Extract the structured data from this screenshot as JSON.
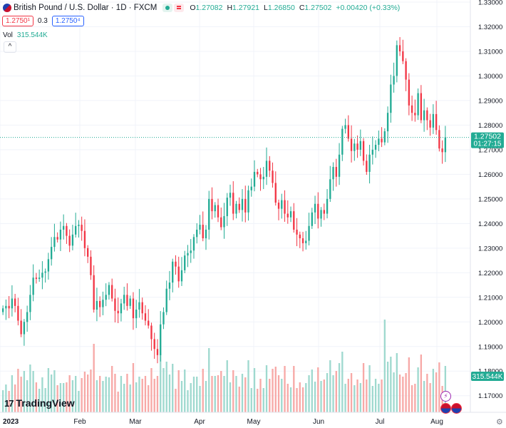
{
  "header": {
    "title": "British Pound / U.S. Dollar · 1D · FXCM",
    "ohlc": [
      {
        "k": "O",
        "v": "1.27082"
      },
      {
        "k": "H",
        "v": "1.27921"
      },
      {
        "k": "L",
        "v": "1.26850"
      },
      {
        "k": "C",
        "v": "1.27502"
      }
    ],
    "change": "+0.00420 (+0.33%)"
  },
  "trade": {
    "sell": "1.2750¹",
    "spread": "0.3",
    "buy": "1.2750⁴"
  },
  "volume": {
    "label": "Vol",
    "value": "315.544K"
  },
  "branding": {
    "logo_text": "TradingView"
  },
  "colors": {
    "up": "#22ab94",
    "down": "#f23645",
    "up_vol": "#9fd9cf",
    "down_vol": "#f7a9a7"
  },
  "chart_data": {
    "type": "candlestick",
    "symbol": "GBPUSD",
    "interval": "1D",
    "y_ticks": [
      "1.33000",
      "1.32000",
      "1.31000",
      "1.30000",
      "1.29000",
      "1.28000",
      "1.27000",
      "1.26000",
      "1.25000",
      "1.24000",
      "1.23000",
      "1.22000",
      "1.21000",
      "1.20000",
      "1.19000",
      "1.18000",
      "1.17000"
    ],
    "x_labels": [
      "2023",
      "Feb",
      "Mar",
      "Apr",
      "May",
      "Jun",
      "Jul",
      "Aug"
    ],
    "last_price": "1.27502",
    "countdown": "01:27:15",
    "volume_badge": "315.544K",
    "closes": [
      1.2055,
      1.2065,
      1.2055,
      1.2095,
      1.2065,
      1.2005,
      1.195,
      1.2,
      1.204,
      1.211,
      1.218,
      1.2175,
      1.218,
      1.22,
      1.2205,
      1.2255,
      1.2305,
      1.2345,
      1.2335,
      1.2375,
      1.239,
      1.235,
      1.231,
      1.2355,
      1.239,
      1.2395,
      1.237,
      1.23,
      1.2265,
      1.219,
      1.205,
      1.2085,
      1.206,
      1.209,
      1.211,
      1.215,
      1.2095,
      1.2045,
      1.2035,
      1.2075,
      1.211,
      1.2065,
      1.2095,
      1.2015,
      1.205,
      1.208,
      1.2035,
      1.2005,
      1.1985,
      1.193,
      1.189,
      1.1865,
      1.199,
      1.204,
      1.2135,
      1.216,
      1.2245,
      1.2225,
      1.2165,
      1.221,
      1.227,
      1.228,
      1.229,
      1.2345,
      1.2375,
      1.2395,
      1.234,
      1.2375,
      1.25,
      1.245,
      1.2475,
      1.2425,
      1.2385,
      1.243,
      1.2505,
      1.2525,
      1.244,
      1.248,
      1.2455,
      1.25,
      1.2445,
      1.2535,
      1.255,
      1.261,
      1.26,
      1.258,
      1.259,
      1.2655,
      1.2615,
      1.2565,
      1.2485,
      1.246,
      1.2495,
      1.244,
      1.2425,
      1.245,
      1.2375,
      1.2355,
      1.234,
      1.232,
      1.233,
      1.239,
      1.2445,
      1.248,
      1.242,
      1.2455,
      1.244,
      1.25,
      1.258,
      1.263,
      1.259,
      1.268,
      1.2785,
      1.28,
      1.2745,
      1.2695,
      1.2725,
      1.27,
      1.2735,
      1.2655,
      1.261,
      1.268,
      1.27,
      1.272,
      1.2745,
      1.273,
      1.2775,
      1.285,
      1.2965,
      1.3,
      1.3125,
      1.31,
      1.306,
      1.2985,
      1.288,
      1.285,
      1.284,
      1.293,
      1.282,
      1.286,
      1.282,
      1.279,
      1.2845,
      1.278,
      1.2705,
      1.269,
      1.275
    ]
  }
}
